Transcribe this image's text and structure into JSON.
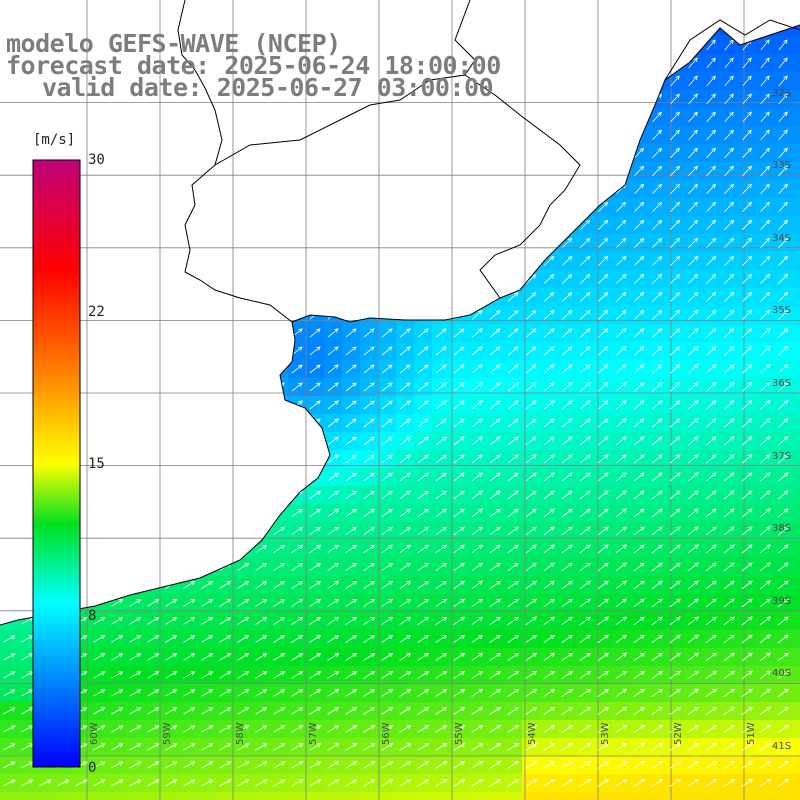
{
  "title": {
    "line1": "modelo GEFS-WAVE (NCEP)",
    "line2": "forecast date: 2025-06-24 18:00:00",
    "line3": "valid date: 2025-06-27 03:00:00"
  },
  "colorbar": {
    "unit": "[m/s]",
    "min": 0,
    "max": 30,
    "ticks": [
      "30",
      "22",
      "15",
      "8",
      "0"
    ],
    "tick_values": [
      30,
      22,
      15,
      8,
      0
    ],
    "colors": [
      "#0000ff",
      "#00ffff",
      "#00ff00",
      "#ffff00",
      "#ff8000",
      "#ff0000",
      "#c00080"
    ]
  },
  "axes": {
    "lat_labels": [
      "32S",
      "33S",
      "34S",
      "35S",
      "36S",
      "37S",
      "38S",
      "39S",
      "40S",
      "41S"
    ],
    "lat_values": [
      -32,
      -33,
      -34,
      -35,
      -36,
      -37,
      -38,
      -39,
      -40,
      -41
    ],
    "lon_labels": [
      "60W",
      "59W",
      "58W",
      "57W",
      "56W",
      "55W",
      "54W",
      "53W",
      "52W",
      "51W"
    ],
    "lon_values": [
      -60,
      -59,
      -58,
      -57,
      -56,
      -55,
      -54,
      -53,
      -52,
      -51
    ],
    "lat_range": [
      -41.3,
      -31.0
    ],
    "lon_range": [
      -61.5,
      -50.7
    ],
    "grid": true
  },
  "colors": {
    "coastline": "#000000",
    "grid": "#808080",
    "arrow": "#ffffff",
    "land": "#ffffff"
  }
}
